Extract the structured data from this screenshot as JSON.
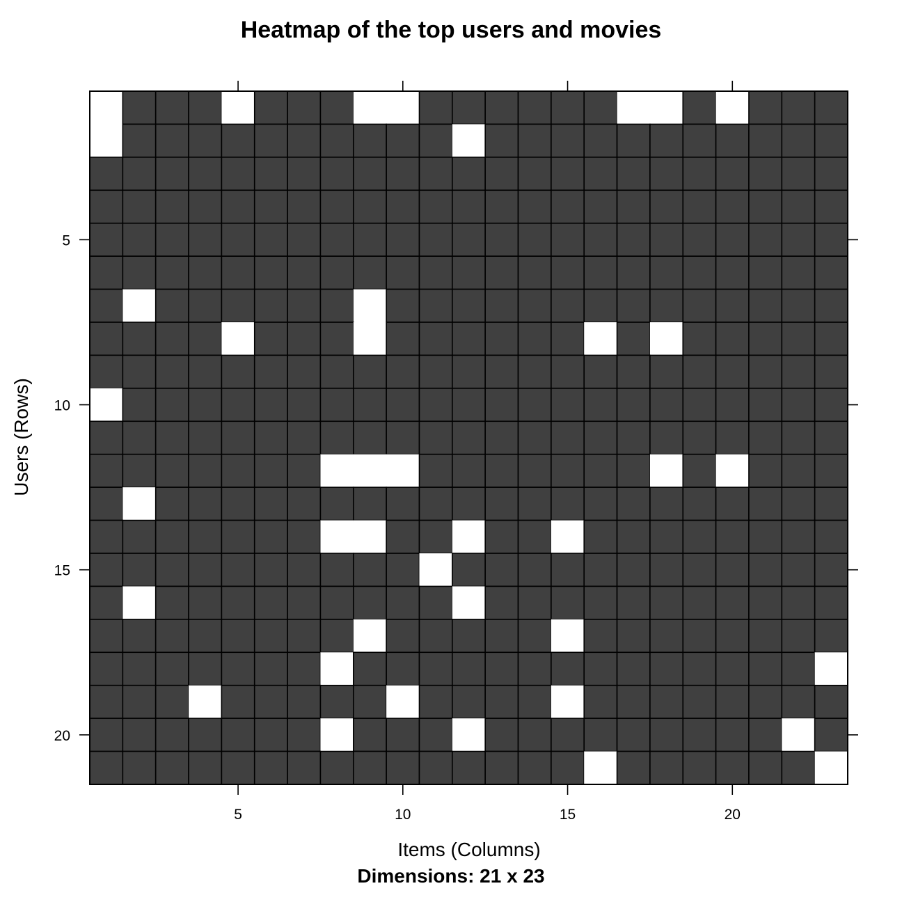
{
  "chart_data": {
    "type": "heatmap",
    "title": "Heatmap of the top users and movies",
    "xlabel": "Items (Columns)",
    "ylabel": "Users (Rows)",
    "subtitle": "Dimensions: 21 x 23",
    "n_rows": 21,
    "n_cols": 23,
    "x_ticks": [
      5,
      10,
      15,
      20
    ],
    "y_ticks": [
      5,
      10,
      15,
      20
    ],
    "colors": {
      "filled": "#404040",
      "empty": "#ffffff",
      "border": "#000000"
    },
    "missing_cells": [
      [
        1,
        1
      ],
      [
        1,
        5
      ],
      [
        1,
        9
      ],
      [
        1,
        10
      ],
      [
        1,
        17
      ],
      [
        1,
        18
      ],
      [
        1,
        20
      ],
      [
        2,
        1
      ],
      [
        2,
        12
      ],
      [
        7,
        2
      ],
      [
        7,
        9
      ],
      [
        8,
        5
      ],
      [
        8,
        9
      ],
      [
        8,
        16
      ],
      [
        8,
        18
      ],
      [
        10,
        1
      ],
      [
        12,
        8
      ],
      [
        12,
        9
      ],
      [
        12,
        10
      ],
      [
        12,
        18
      ],
      [
        12,
        20
      ],
      [
        13,
        2
      ],
      [
        14,
        8
      ],
      [
        14,
        9
      ],
      [
        14,
        12
      ],
      [
        14,
        15
      ],
      [
        15,
        11
      ],
      [
        16,
        2
      ],
      [
        16,
        12
      ],
      [
        17,
        9
      ],
      [
        17,
        15
      ],
      [
        18,
        8
      ],
      [
        18,
        23
      ],
      [
        19,
        4
      ],
      [
        19,
        10
      ],
      [
        19,
        15
      ],
      [
        20,
        8
      ],
      [
        20,
        12
      ],
      [
        20,
        22
      ],
      [
        21,
        16
      ],
      [
        21,
        23
      ]
    ]
  }
}
